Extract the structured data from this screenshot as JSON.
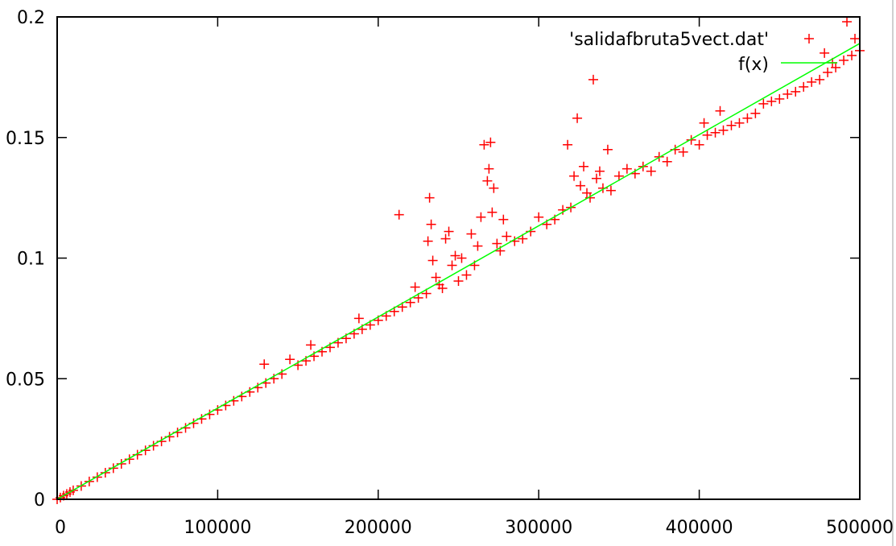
{
  "chart_data": {
    "type": "scatter",
    "title": "",
    "xlabel": "",
    "ylabel": "",
    "xlim": [
      0,
      500000
    ],
    "ylim": [
      0,
      0.2
    ],
    "x_ticks": [
      0,
      100000,
      200000,
      300000,
      400000,
      500000
    ],
    "x_tick_labels": [
      "0",
      "100000",
      "200000",
      "300000",
      "400000",
      "500000"
    ],
    "y_ticks": [
      0,
      0.05,
      0.1,
      0.15,
      0.2
    ],
    "y_tick_labels": [
      "0",
      "0.05",
      "0.1",
      "0.15",
      "0.2"
    ],
    "grid": false,
    "legend_position": "top-right",
    "series": [
      {
        "name": "'salidafbruta5vect.dat'",
        "kind": "scatter",
        "marker": "plus",
        "color": "#ff0000",
        "points": [
          [
            0,
            0
          ],
          [
            2000,
            0.0007
          ],
          [
            4000,
            0.0015
          ],
          [
            6000,
            0.0022
          ],
          [
            8000,
            0.003
          ],
          [
            10000,
            0.0037
          ],
          [
            15000,
            0.0055
          ],
          [
            20000,
            0.0074
          ],
          [
            25000,
            0.0092
          ],
          [
            30000,
            0.011
          ],
          [
            35000,
            0.0129
          ],
          [
            40000,
            0.0147
          ],
          [
            45000,
            0.0166
          ],
          [
            50000,
            0.0185
          ],
          [
            55000,
            0.0203
          ],
          [
            60000,
            0.0222
          ],
          [
            65000,
            0.024
          ],
          [
            70000,
            0.0259
          ],
          [
            75000,
            0.0277
          ],
          [
            80000,
            0.0296
          ],
          [
            85000,
            0.0315
          ],
          [
            90000,
            0.0333
          ],
          [
            95000,
            0.0352
          ],
          [
            100000,
            0.037
          ],
          [
            105000,
            0.0389
          ],
          [
            110000,
            0.0408
          ],
          [
            115000,
            0.0426
          ],
          [
            120000,
            0.0445
          ],
          [
            125000,
            0.0463
          ],
          [
            129000,
            0.056
          ],
          [
            130000,
            0.0482
          ],
          [
            135000,
            0.05
          ],
          [
            140000,
            0.0519
          ],
          [
            145000,
            0.058
          ],
          [
            150000,
            0.0556
          ],
          [
            155000,
            0.0574
          ],
          [
            158000,
            0.064
          ],
          [
            160000,
            0.0593
          ],
          [
            165000,
            0.0612
          ],
          [
            170000,
            0.063
          ],
          [
            175000,
            0.0649
          ],
          [
            180000,
            0.0667
          ],
          [
            185000,
            0.0686
          ],
          [
            188000,
            0.075
          ],
          [
            190000,
            0.0705
          ],
          [
            195000,
            0.0723
          ],
          [
            200000,
            0.0742
          ],
          [
            205000,
            0.076
          ],
          [
            210000,
            0.0779
          ],
          [
            213000,
            0.118
          ],
          [
            215000,
            0.0797
          ],
          [
            220000,
            0.0816
          ],
          [
            223000,
            0.088
          ],
          [
            225000,
            0.0835
          ],
          [
            230000,
            0.0853
          ],
          [
            231000,
            0.107
          ],
          [
            232000,
            0.125
          ],
          [
            233000,
            0.114
          ],
          [
            234000,
            0.099
          ],
          [
            236000,
            0.092
          ],
          [
            238000,
            0.089
          ],
          [
            240000,
            0.0875
          ],
          [
            242000,
            0.108
          ],
          [
            244000,
            0.111
          ],
          [
            246000,
            0.097
          ],
          [
            248000,
            0.101
          ],
          [
            250000,
            0.0905
          ],
          [
            252000,
            0.1
          ],
          [
            255000,
            0.093
          ],
          [
            258000,
            0.11
          ],
          [
            260000,
            0.097
          ],
          [
            262000,
            0.105
          ],
          [
            264000,
            0.117
          ],
          [
            266000,
            0.147
          ],
          [
            268000,
            0.132
          ],
          [
            269000,
            0.137
          ],
          [
            270000,
            0.148
          ],
          [
            271000,
            0.119
          ],
          [
            272000,
            0.129
          ],
          [
            274000,
            0.106
          ],
          [
            276000,
            0.103
          ],
          [
            278000,
            0.116
          ],
          [
            280000,
            0.109
          ],
          [
            285000,
            0.107
          ],
          [
            290000,
            0.108
          ],
          [
            295000,
            0.111
          ],
          [
            300000,
            0.117
          ],
          [
            305000,
            0.114
          ],
          [
            310000,
            0.116
          ],
          [
            315000,
            0.12
          ],
          [
            318000,
            0.147
          ],
          [
            320000,
            0.121
          ],
          [
            322000,
            0.134
          ],
          [
            324000,
            0.158
          ],
          [
            326000,
            0.13
          ],
          [
            328000,
            0.138
          ],
          [
            330000,
            0.127
          ],
          [
            332000,
            0.125
          ],
          [
            334000,
            0.174
          ],
          [
            336000,
            0.133
          ],
          [
            338000,
            0.136
          ],
          [
            340000,
            0.129
          ],
          [
            343000,
            0.145
          ],
          [
            345000,
            0.128
          ],
          [
            350000,
            0.134
          ],
          [
            355000,
            0.137
          ],
          [
            360000,
            0.135
          ],
          [
            365000,
            0.138
          ],
          [
            370000,
            0.136
          ],
          [
            375000,
            0.142
          ],
          [
            380000,
            0.14
          ],
          [
            385000,
            0.145
          ],
          [
            390000,
            0.144
          ],
          [
            395000,
            0.149
          ],
          [
            400000,
            0.147
          ],
          [
            403000,
            0.156
          ],
          [
            405000,
            0.151
          ],
          [
            410000,
            0.152
          ],
          [
            413000,
            0.161
          ],
          [
            415000,
            0.153
          ],
          [
            420000,
            0.155
          ],
          [
            425000,
            0.156
          ],
          [
            430000,
            0.158
          ],
          [
            435000,
            0.16
          ],
          [
            440000,
            0.164
          ],
          [
            445000,
            0.165
          ],
          [
            450000,
            0.166
          ],
          [
            455000,
            0.168
          ],
          [
            460000,
            0.169
          ],
          [
            465000,
            0.171
          ],
          [
            470000,
            0.173
          ],
          [
            475000,
            0.174
          ],
          [
            478000,
            0.185
          ],
          [
            480000,
            0.177
          ],
          [
            483000,
            0.181
          ],
          [
            485000,
            0.179
          ],
          [
            490000,
            0.182
          ],
          [
            492000,
            0.198
          ],
          [
            495000,
            0.184
          ],
          [
            497000,
            0.191
          ],
          [
            500000,
            0.186
          ]
        ]
      },
      {
        "name": "f(x)",
        "kind": "line",
        "color": "#00ff00",
        "points": [
          [
            0,
            0
          ],
          [
            500000,
            0.189
          ]
        ]
      }
    ]
  }
}
